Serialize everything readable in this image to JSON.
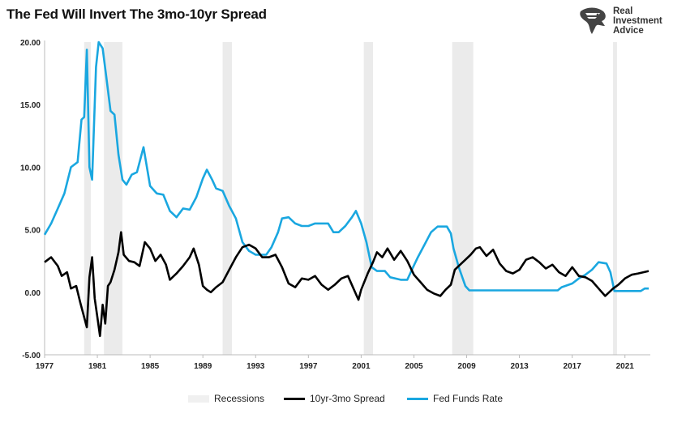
{
  "title": "The Fed Will Invert The 3mo-10yr Spread",
  "logo": {
    "lines": [
      "Real",
      "Investment",
      "Advice"
    ],
    "icon": "eagle-head-icon"
  },
  "colors": {
    "spread": "#000000",
    "fed": "#1aa7e0",
    "recession": "#ebebeb",
    "axis": "#bbbbbb"
  },
  "chart_data": {
    "type": "line",
    "title": "The Fed Will Invert The 3mo-10yr Spread",
    "xlim": [
      1977,
      2022.8
    ],
    "ylim": [
      -5,
      20
    ],
    "x_ticks": [
      1977,
      1981,
      1985,
      1989,
      1993,
      1997,
      2001,
      2005,
      2009,
      2013,
      2017,
      2021
    ],
    "y_ticks": [
      {
        "value": 20,
        "label": "20.00"
      },
      {
        "value": 15,
        "label": "15.00"
      },
      {
        "value": 10,
        "label": "10.00"
      },
      {
        "value": 5,
        "label": "5.00"
      },
      {
        "value": 0,
        "label": "0.00"
      },
      {
        "value": -5,
        "label": "-5.00"
      }
    ],
    "recessions": [
      [
        1980.0,
        1980.5
      ],
      [
        1981.5,
        1982.9
      ],
      [
        1990.5,
        1991.2
      ],
      [
        2001.2,
        2001.9
      ],
      [
        2007.9,
        2009.5
      ],
      [
        2020.1,
        2020.4
      ]
    ],
    "series": [
      {
        "name": "10yr-3mo Spread",
        "points": [
          [
            1977.0,
            2.4
          ],
          [
            1977.5,
            2.8
          ],
          [
            1978.0,
            2.1
          ],
          [
            1978.3,
            1.3
          ],
          [
            1978.7,
            1.6
          ],
          [
            1979.0,
            0.3
          ],
          [
            1979.4,
            0.5
          ],
          [
            1979.7,
            -0.8
          ],
          [
            1980.0,
            -2.0
          ],
          [
            1980.2,
            -2.8
          ],
          [
            1980.4,
            1.2
          ],
          [
            1980.6,
            2.8
          ],
          [
            1980.8,
            -0.5
          ],
          [
            1981.0,
            -2.0
          ],
          [
            1981.2,
            -3.5
          ],
          [
            1981.4,
            -1.0
          ],
          [
            1981.6,
            -2.5
          ],
          [
            1981.8,
            0.5
          ],
          [
            1982.0,
            0.8
          ],
          [
            1982.3,
            1.8
          ],
          [
            1982.6,
            3.2
          ],
          [
            1982.8,
            4.8
          ],
          [
            1983.0,
            3.0
          ],
          [
            1983.4,
            2.5
          ],
          [
            1983.8,
            2.4
          ],
          [
            1984.2,
            2.1
          ],
          [
            1984.6,
            4.0
          ],
          [
            1985.0,
            3.5
          ],
          [
            1985.4,
            2.5
          ],
          [
            1985.8,
            3.0
          ],
          [
            1986.2,
            2.2
          ],
          [
            1986.5,
            1.0
          ],
          [
            1987.0,
            1.5
          ],
          [
            1987.5,
            2.1
          ],
          [
            1988.0,
            2.8
          ],
          [
            1988.3,
            3.5
          ],
          [
            1988.7,
            2.2
          ],
          [
            1989.0,
            0.5
          ],
          [
            1989.3,
            0.2
          ],
          [
            1989.6,
            0.0
          ],
          [
            1990.0,
            0.4
          ],
          [
            1990.5,
            0.8
          ],
          [
            1991.0,
            1.8
          ],
          [
            1991.5,
            2.8
          ],
          [
            1992.0,
            3.6
          ],
          [
            1992.5,
            3.8
          ],
          [
            1993.0,
            3.5
          ],
          [
            1993.5,
            2.8
          ],
          [
            1994.0,
            2.8
          ],
          [
            1994.5,
            3.0
          ],
          [
            1995.0,
            2.0
          ],
          [
            1995.5,
            0.7
          ],
          [
            1996.0,
            0.4
          ],
          [
            1996.5,
            1.1
          ],
          [
            1997.0,
            1.0
          ],
          [
            1997.5,
            1.3
          ],
          [
            1998.0,
            0.6
          ],
          [
            1998.5,
            0.2
          ],
          [
            1999.0,
            0.6
          ],
          [
            1999.5,
            1.1
          ],
          [
            2000.0,
            1.3
          ],
          [
            2000.5,
            0.1
          ],
          [
            2000.8,
            -0.6
          ],
          [
            2001.0,
            0.2
          ],
          [
            2001.5,
            1.5
          ],
          [
            2001.9,
            2.4
          ],
          [
            2002.2,
            3.2
          ],
          [
            2002.6,
            2.8
          ],
          [
            2003.0,
            3.5
          ],
          [
            2003.5,
            2.6
          ],
          [
            2004.0,
            3.3
          ],
          [
            2004.5,
            2.5
          ],
          [
            2005.0,
            1.4
          ],
          [
            2005.5,
            0.8
          ],
          [
            2006.0,
            0.2
          ],
          [
            2006.5,
            -0.1
          ],
          [
            2007.0,
            -0.3
          ],
          [
            2007.4,
            0.2
          ],
          [
            2007.8,
            0.6
          ],
          [
            2008.1,
            1.8
          ],
          [
            2008.5,
            2.2
          ],
          [
            2008.9,
            2.6
          ],
          [
            2009.3,
            3.0
          ],
          [
            2009.7,
            3.5
          ],
          [
            2010.0,
            3.6
          ],
          [
            2010.5,
            2.9
          ],
          [
            2011.0,
            3.4
          ],
          [
            2011.5,
            2.3
          ],
          [
            2012.0,
            1.7
          ],
          [
            2012.5,
            1.5
          ],
          [
            2013.0,
            1.8
          ],
          [
            2013.5,
            2.6
          ],
          [
            2014.0,
            2.8
          ],
          [
            2014.5,
            2.4
          ],
          [
            2015.0,
            1.9
          ],
          [
            2015.5,
            2.2
          ],
          [
            2016.0,
            1.6
          ],
          [
            2016.5,
            1.3
          ],
          [
            2017.0,
            2.0
          ],
          [
            2017.5,
            1.3
          ],
          [
            2018.0,
            1.2
          ],
          [
            2018.5,
            0.9
          ],
          [
            2019.0,
            0.3
          ],
          [
            2019.5,
            -0.3
          ],
          [
            2019.8,
            0.0
          ],
          [
            2020.1,
            0.3
          ],
          [
            2020.5,
            0.6
          ],
          [
            2021.0,
            1.1
          ],
          [
            2021.5,
            1.4
          ],
          [
            2022.0,
            1.5
          ],
          [
            2022.8,
            1.7
          ]
        ]
      },
      {
        "name": "Fed Funds Rate",
        "points": [
          [
            1977.0,
            4.6
          ],
          [
            1977.5,
            5.5
          ],
          [
            1978.0,
            6.7
          ],
          [
            1978.5,
            7.9
          ],
          [
            1979.0,
            10.0
          ],
          [
            1979.5,
            10.4
          ],
          [
            1979.8,
            13.8
          ],
          [
            1980.0,
            14.0
          ],
          [
            1980.2,
            19.4
          ],
          [
            1980.4,
            10.0
          ],
          [
            1980.6,
            9.0
          ],
          [
            1980.9,
            18.0
          ],
          [
            1981.1,
            20.0
          ],
          [
            1981.4,
            19.5
          ],
          [
            1981.7,
            17.0
          ],
          [
            1982.0,
            14.5
          ],
          [
            1982.3,
            14.2
          ],
          [
            1982.6,
            11.0
          ],
          [
            1982.9,
            9.0
          ],
          [
            1983.2,
            8.6
          ],
          [
            1983.6,
            9.4
          ],
          [
            1984.0,
            9.6
          ],
          [
            1984.5,
            11.6
          ],
          [
            1985.0,
            8.5
          ],
          [
            1985.5,
            7.9
          ],
          [
            1986.0,
            7.8
          ],
          [
            1986.5,
            6.5
          ],
          [
            1987.0,
            6.0
          ],
          [
            1987.5,
            6.7
          ],
          [
            1988.0,
            6.6
          ],
          [
            1988.5,
            7.6
          ],
          [
            1989.0,
            9.1
          ],
          [
            1989.3,
            9.8
          ],
          [
            1989.7,
            9.0
          ],
          [
            1990.0,
            8.3
          ],
          [
            1990.5,
            8.1
          ],
          [
            1991.0,
            6.9
          ],
          [
            1991.5,
            5.9
          ],
          [
            1992.0,
            4.0
          ],
          [
            1992.5,
            3.3
          ],
          [
            1993.0,
            3.0
          ],
          [
            1993.8,
            3.0
          ],
          [
            1994.2,
            3.6
          ],
          [
            1994.7,
            4.8
          ],
          [
            1995.0,
            5.9
          ],
          [
            1995.5,
            6.0
          ],
          [
            1996.0,
            5.5
          ],
          [
            1996.5,
            5.3
          ],
          [
            1997.0,
            5.3
          ],
          [
            1997.5,
            5.5
          ],
          [
            1998.0,
            5.5
          ],
          [
            1998.5,
            5.5
          ],
          [
            1998.9,
            4.8
          ],
          [
            1999.3,
            4.8
          ],
          [
            1999.8,
            5.3
          ],
          [
            2000.3,
            6.0
          ],
          [
            2000.6,
            6.5
          ],
          [
            2001.0,
            5.5
          ],
          [
            2001.4,
            4.0
          ],
          [
            2001.8,
            2.0
          ],
          [
            2002.2,
            1.7
          ],
          [
            2002.8,
            1.7
          ],
          [
            2003.2,
            1.2
          ],
          [
            2004.0,
            1.0
          ],
          [
            2004.5,
            1.0
          ],
          [
            2004.8,
            1.7
          ],
          [
            2005.3,
            2.8
          ],
          [
            2005.8,
            3.8
          ],
          [
            2006.3,
            4.8
          ],
          [
            2006.8,
            5.25
          ],
          [
            2007.5,
            5.25
          ],
          [
            2007.8,
            4.7
          ],
          [
            2008.0,
            3.5
          ],
          [
            2008.4,
            2.0
          ],
          [
            2008.9,
            0.5
          ],
          [
            2009.2,
            0.15
          ],
          [
            2012.0,
            0.15
          ],
          [
            2015.9,
            0.15
          ],
          [
            2016.2,
            0.4
          ],
          [
            2017.0,
            0.7
          ],
          [
            2017.5,
            1.1
          ],
          [
            2018.0,
            1.4
          ],
          [
            2018.5,
            1.8
          ],
          [
            2019.0,
            2.4
          ],
          [
            2019.6,
            2.3
          ],
          [
            2019.9,
            1.6
          ],
          [
            2020.2,
            0.1
          ],
          [
            2021.5,
            0.1
          ],
          [
            2022.2,
            0.1
          ],
          [
            2022.5,
            0.3
          ],
          [
            2022.8,
            0.3
          ]
        ]
      }
    ],
    "legend": {
      "placement": "bottom",
      "items": [
        {
          "label": "Recessions"
        },
        {
          "label": "10yr-3mo Spread"
        },
        {
          "label": "Fed Funds Rate"
        }
      ]
    }
  }
}
